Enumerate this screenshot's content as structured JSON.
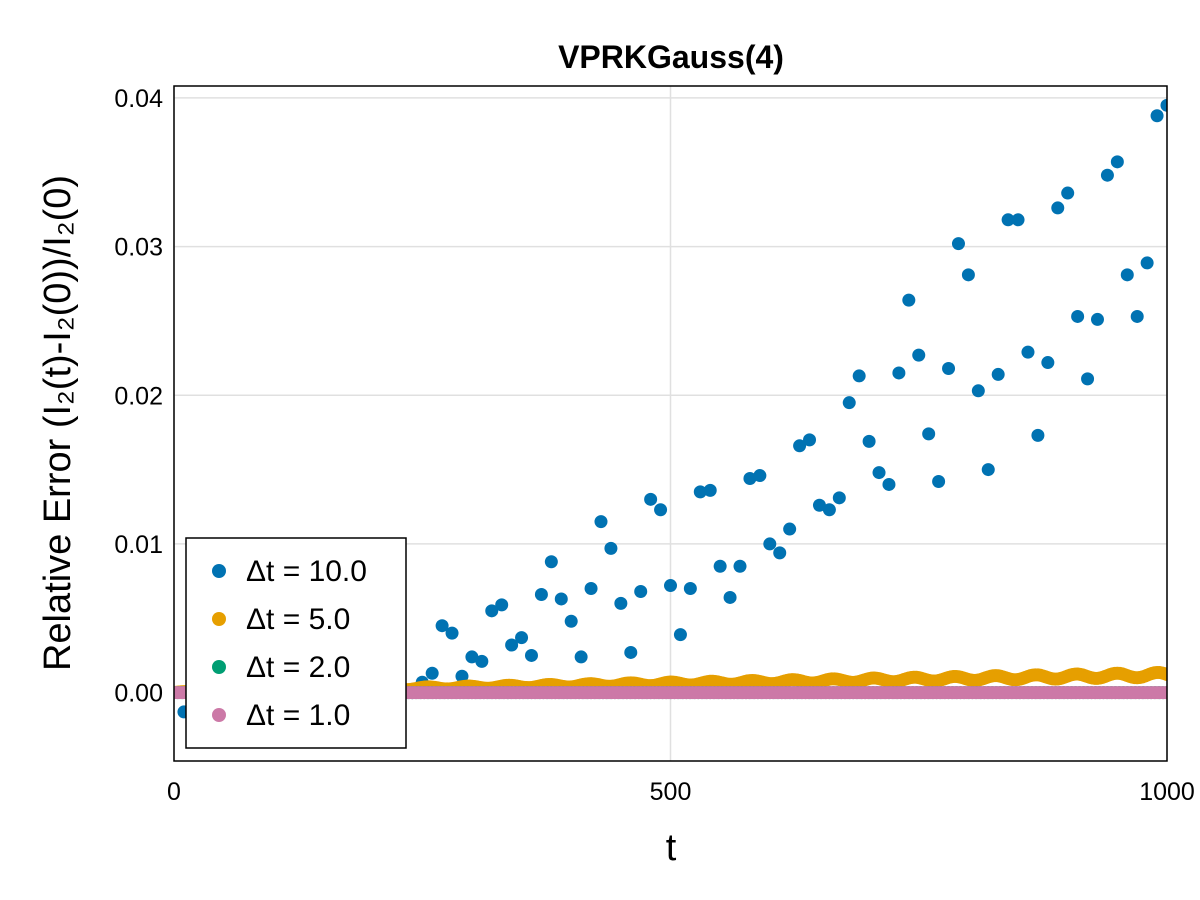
{
  "chart_data": {
    "type": "scatter",
    "title": "VPRKGauss(4)",
    "xlabel": "t",
    "ylabel": "Relative Error (I₂(t)-I₂(0))/I₂(0)",
    "xlim": [
      0,
      1000
    ],
    "ylim": [
      -0.0046,
      0.0408
    ],
    "x_ticks": [
      0,
      500,
      1000
    ],
    "x_tick_labels": [
      "0",
      "500",
      "1000"
    ],
    "y_ticks": [
      0.0,
      0.01,
      0.02,
      0.03,
      0.04
    ],
    "y_tick_labels": [
      "0.00",
      "0.01",
      "0.02",
      "0.03",
      "0.04"
    ],
    "grid": true,
    "legend_position": "bottom-left",
    "series": [
      {
        "name": "Δt = 10.0",
        "color": "#0072b2",
        "x": [
          0,
          10,
          20,
          30,
          40,
          50,
          60,
          70,
          80,
          90,
          100,
          110,
          120,
          130,
          140,
          150,
          160,
          170,
          180,
          190,
          200,
          210,
          220,
          230,
          240,
          250,
          260,
          270,
          280,
          290,
          300,
          310,
          320,
          330,
          340,
          350,
          360,
          370,
          380,
          390,
          400,
          410,
          420,
          430,
          440,
          450,
          460,
          470,
          480,
          490,
          500,
          510,
          520,
          530,
          540,
          550,
          560,
          570,
          580,
          590,
          600,
          610,
          620,
          630,
          640,
          650,
          660,
          670,
          680,
          690,
          700,
          710,
          720,
          730,
          740,
          750,
          760,
          770,
          780,
          790,
          800,
          810,
          820,
          830,
          840,
          850,
          860,
          870,
          880,
          890,
          900,
          910,
          920,
          930,
          940,
          950,
          960,
          970,
          980,
          990,
          1000
        ],
        "y": [
          0.0,
          -0.0013,
          -0.0011,
          -0.0009,
          -0.0008,
          -0.0006,
          -0.0004,
          -0.0002,
          0.0,
          0.0003,
          0.0005,
          0.0008,
          0.0011,
          0.0014,
          0.0018,
          0.0021,
          0.0024,
          0.0029,
          0.0033,
          0.0036,
          0.004,
          0.0039,
          0.003,
          0.0002,
          0.0,
          0.0007,
          0.0013,
          0.0045,
          0.004,
          0.0011,
          0.0024,
          0.0021,
          0.0055,
          0.0059,
          0.0032,
          0.0037,
          0.0025,
          0.0066,
          0.0088,
          0.0063,
          0.0048,
          0.0024,
          0.007,
          0.0115,
          0.0097,
          0.006,
          0.0027,
          0.0068,
          0.013,
          0.0123,
          0.0072,
          0.0039,
          0.007,
          0.0135,
          0.0136,
          0.0085,
          0.0064,
          0.0085,
          0.0144,
          0.0146,
          0.01,
          0.0094,
          0.011,
          0.0166,
          0.017,
          0.0126,
          0.0123,
          0.0131,
          0.0195,
          0.0213,
          0.0169,
          0.0148,
          0.014,
          0.0215,
          0.0264,
          0.0227,
          0.0174,
          0.0142,
          0.0218,
          0.0302,
          0.0281,
          0.0203,
          0.015,
          0.0214,
          0.0318,
          0.0318,
          0.0229,
          0.0173,
          0.0222,
          0.0326,
          0.0336,
          0.0253,
          0.0211,
          0.0251,
          0.0348,
          0.0357,
          0.0281,
          0.0253,
          0.0289,
          0.0388,
          0.0395
        ]
      },
      {
        "name": "Δt = 5.0",
        "color": "#e69f00",
        "x": [
          0,
          1000
        ],
        "y": [
          0.0,
          0.0012
        ],
        "note_oscillation": "oscillating band rising from 0 to about 0.001"
      },
      {
        "name": "Δt = 2.0",
        "color": "#009e73",
        "x": [
          0,
          1000
        ],
        "y": [
          0.0,
          0.0
        ]
      },
      {
        "name": "Δt = 1.0",
        "color": "#cc79a7",
        "x": [
          0,
          1000
        ],
        "y": [
          0.0,
          0.0
        ]
      }
    ]
  }
}
